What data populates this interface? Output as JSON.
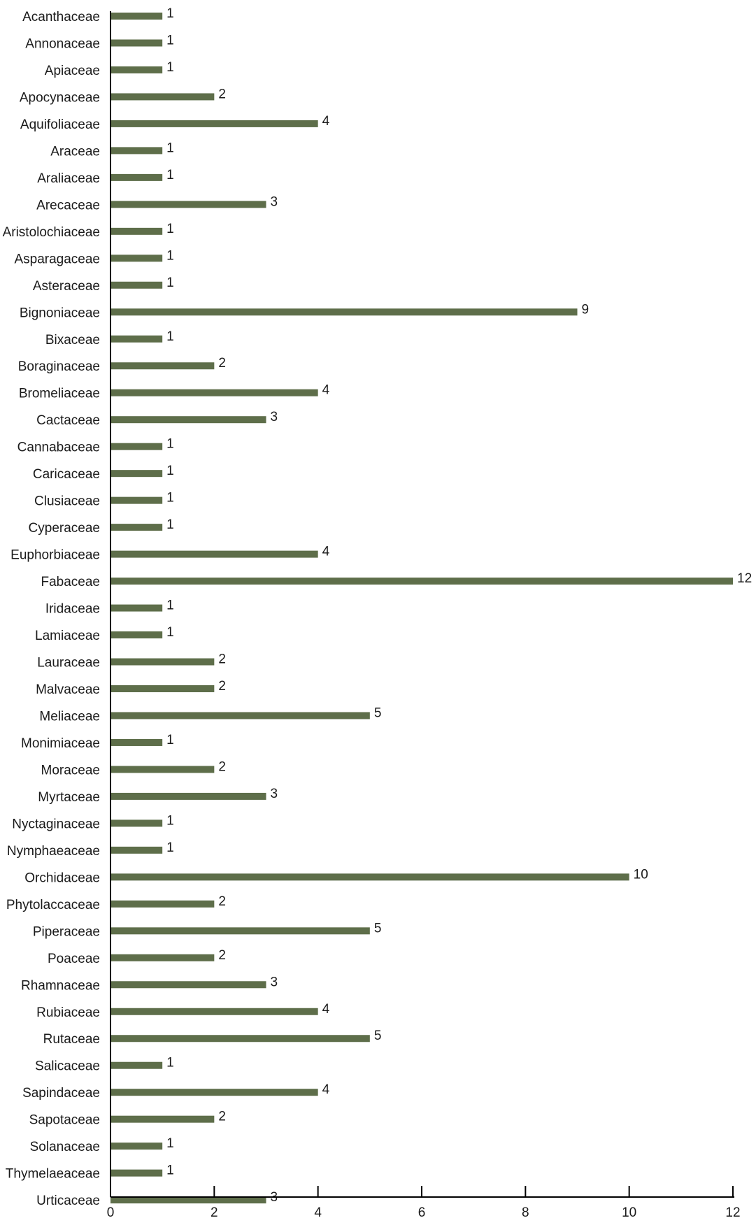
{
  "chart_data": {
    "type": "bar",
    "orientation": "horizontal",
    "title": "",
    "xlabel": "",
    "ylabel": "",
    "xlim": [
      0,
      12
    ],
    "xticks": [
      0,
      2,
      4,
      6,
      8,
      10,
      12
    ],
    "grid": false,
    "show_data_labels": true,
    "bar_color": "#5e6e4a",
    "categories": [
      "Acanthaceae",
      "Annonaceae",
      "Apiaceae",
      "Apocynaceae",
      "Aquifoliaceae",
      "Araceae",
      "Araliaceae",
      "Arecaceae",
      "Aristolochiaceae",
      "Asparagaceae",
      "Asteraceae",
      "Bignoniaceae",
      "Bixaceae",
      "Boraginaceae",
      "Bromeliaceae",
      "Cactaceae",
      "Cannabaceae",
      "Caricaceae",
      "Clusiaceae",
      "Cyperaceae",
      "Euphorbiaceae",
      "Fabaceae",
      "Iridaceae",
      "Lamiaceae",
      "Lauraceae",
      "Malvaceae",
      "Meliaceae",
      "Monimiaceae",
      "Moraceae",
      "Myrtaceae",
      "Nyctaginaceae",
      "Nymphaeaceae",
      "Orchidaceae",
      "Phytolaccaceae",
      "Piperaceae",
      "Poaceae",
      "Rhamnaceae",
      "Rubiaceae",
      "Rutaceae",
      "Salicaceae",
      "Sapindaceae",
      "Sapotaceae",
      "Solanaceae",
      "Thymelaeaceae",
      "Urticaceae"
    ],
    "values": [
      1,
      1,
      1,
      2,
      4,
      1,
      1,
      3,
      1,
      1,
      1,
      9,
      1,
      2,
      4,
      3,
      1,
      1,
      1,
      1,
      4,
      12,
      1,
      1,
      2,
      2,
      5,
      1,
      2,
      3,
      1,
      1,
      10,
      2,
      5,
      2,
      3,
      4,
      5,
      1,
      4,
      2,
      1,
      1,
      3
    ]
  }
}
